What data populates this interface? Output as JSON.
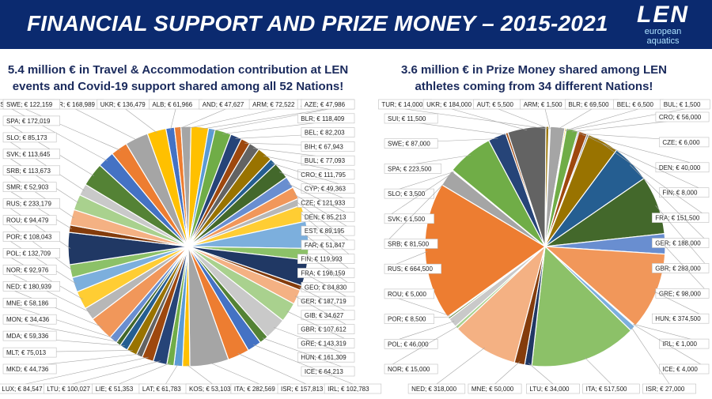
{
  "header": {
    "title": "FINANCIAL SUPPORT AND PRIZE MONEY – 2015-2021",
    "logo_mark": "LEN",
    "logo_line1": "european",
    "logo_line2": "aquatics"
  },
  "left_subtitle_1": "5.4 million € in Travel & Accommodation contribution at LEN",
  "left_subtitle_2": "events and Covid-19 support shared among all 52 Nations!",
  "right_subtitle_1": "3.6 million € in Prize Money shared among LEN",
  "right_subtitle_2": "athletes coming from 34 different Nations!",
  "chart_data": [
    {
      "type": "pie",
      "title": "5.4 million € in Travel & Accommodation contribution at LEN events and Covid-19 support shared among all 52 Nations!",
      "categories": [
        "ALB",
        "AND",
        "ARM",
        "AUT",
        "AZE",
        "BLR",
        "BEL",
        "BIH",
        "BUL",
        "CRO",
        "CYP",
        "CZE",
        "DEN",
        "EST",
        "FAR",
        "FIN",
        "FRA",
        "GEO",
        "GER",
        "GIB",
        "GBR",
        "GRE",
        "HUN",
        "ICE",
        "IRL",
        "ISR",
        "ITA",
        "KOS",
        "LAT",
        "LIE",
        "LTU",
        "LUX",
        "MKD",
        "MLT",
        "MDA",
        "MON",
        "MNE",
        "NED",
        "NOR",
        "POL",
        "POR",
        "ROU",
        "RUS",
        "SMR",
        "SRB",
        "SVK",
        "SLO",
        "SPA",
        "SWE",
        "SUI",
        "TUR",
        "UKR"
      ],
      "values": [
        61966,
        47627,
        72522,
        126229,
        47986,
        118409,
        82203,
        67943,
        77093,
        111795,
        49363,
        121933,
        85213,
        89195,
        51847,
        119993,
        196159,
        84830,
        187719,
        34627,
        107612,
        143319,
        161309,
        64213,
        102783,
        157813,
        282569,
        53103,
        61783,
        51353,
        100027,
        84547,
        44736,
        75013,
        59336,
        34436,
        58186,
        180939,
        92976,
        132709,
        108043,
        94479,
        233179,
        52903,
        113673,
        113645,
        85173,
        172019,
        122159,
        122159,
        168989,
        136479
      ],
      "labels": [
        "ALB; € 61,966",
        "AND; € 47,627",
        "ARM; € 72,522",
        "AUT; € 126,229",
        "AZE; € 47,986",
        "BLR; € 118,409",
        "BEL; € 82,203",
        "BIH; € 67,943",
        "BUL; € 77,093",
        "CRO; € 111,795",
        "CYP; € 49,363",
        "CZE; € 121,933",
        "DEN; € 85,213",
        "EST; € 89,195",
        "FAR; € 51,847",
        "FIN; € 119,993",
        "FRA; € 196,159",
        "GEO; € 84,830",
        "GER; € 187,719",
        "GIB; € 34,627",
        "GBR; € 107,612",
        "GRE; € 143,319",
        "HUN; € 161,309",
        "ICE; € 64,213",
        "IRL; € 102,783",
        "ISR; € 157,813",
        "ITA; € 282,569",
        "KOS; € 53,103",
        "LAT; € 61,783",
        "LIE; € 51,353",
        "LTU; € 100,027",
        "LUX; € 84,547",
        "MKD; € 44,736",
        "MLT; € 75,013",
        "MDA; € 59,336",
        "MON; € 34,436",
        "MNE; € 58,186",
        "NED; € 180,939",
        "NOR; € 92,976",
        "POL; € 132,709",
        "POR; € 108,043",
        "ROU; € 94,479",
        "RUS; € 233,179",
        "SMR; € 52,903",
        "SRB; € 113,673",
        "SVK; € 113,645",
        "SLO; € 85,173",
        "SPA; € 172,019",
        "SWE; € 122,159",
        "SUI; € 122,159",
        "TUR; € 168,989",
        "UKR; € 136,479"
      ]
    },
    {
      "type": "pie",
      "title": "3.6 million € in Prize Money shared among LEN athletes coming from 34 different Nations!",
      "categories": [
        "AUT",
        "ARM",
        "BLR",
        "BEL",
        "BUL",
        "CRO",
        "CZE",
        "DEN",
        "FIN",
        "FRA",
        "GER",
        "GBR",
        "GRE",
        "HUN",
        "IRL",
        "ICE",
        "ISR",
        "ITA",
        "LTU",
        "MNE",
        "NED",
        "NOR",
        "POL",
        "POR",
        "ROU",
        "RUS",
        "SRB",
        "SVK",
        "SLO",
        "SPA",
        "SWE",
        "SUI",
        "UKR",
        "TUR"
      ],
      "values": [
        5500,
        1500,
        69500,
        6500,
        1500,
        56000,
        6000,
        40000,
        8000,
        151500,
        188000,
        283000,
        98000,
        374500,
        1000,
        4000,
        27000,
        517500,
        34000,
        50000,
        318000,
        15000,
        46000,
        8500,
        5000,
        664500,
        81500,
        1500,
        3500,
        223500,
        87000,
        11500,
        184000,
        14000
      ],
      "labels": [
        "AUT; € 5,500",
        "ARM; € 1,500",
        "BLR; € 69,500",
        "BEL; € 6,500",
        "BUL; € 1,500",
        "CRO; € 56,000",
        "CZE; € 6,000",
        "DEN; € 40,000",
        "FIN; € 8,000",
        "FRA; € 151,500",
        "GER; € 188,000",
        "GBR; € 283,000",
        "GRE; € 98,000",
        "HUN; € 374,500",
        "IRL; € 1,000",
        "ICE; € 4,000",
        "ISR; € 27,000",
        "ITA; € 517,500",
        "LTU; € 34,000",
        "MNE; € 50,000",
        "NED; € 318,000",
        "NOR; € 15,000",
        "POL; € 46,000",
        "POR; € 8,500",
        "ROU; € 5,000",
        "RUS; € 664,500",
        "SRB; € 81,500",
        "SVK; € 1,500",
        "SLO; € 3,500",
        "SPA; € 223,500",
        "SWE; € 87,000",
        "SUI; € 11,500",
        "UKR; € 184,000",
        "TUR; € 14,000"
      ]
    }
  ],
  "palette": [
    "#4472c4",
    "#ed7d31",
    "#a5a5a5",
    "#ffc000",
    "#5b9bd5",
    "#70ad47",
    "#264478",
    "#9e480e",
    "#636363",
    "#997300",
    "#255e91",
    "#43682b",
    "#698ed0",
    "#f1975a",
    "#b7b7b7",
    "#ffcd33",
    "#7cafdd",
    "#8cc168",
    "#203864",
    "#843c0c",
    "#f4b183",
    "#a9d18e",
    "#c9c9c9",
    "#548235"
  ],
  "left_label_texts": {
    "top": [
      "SUI; € 122,159",
      "TUR; € 168,989",
      "UKR; € 136,479",
      "ALB; € 61,966",
      "AND; € 47,627",
      "ARM; € 72,522",
      "AUT; € 126,229"
    ],
    "right": [
      "AZE; € 47,986",
      "BLR; € 118,409",
      "BEL; € 82,203",
      "BIH; € 67,943",
      "BUL; € 77,093",
      "CRO; € 111,795",
      "CYP; € 49,363",
      "CZE; € 121,933",
      "DEN; € 85,213",
      "EST; € 89,195",
      "FAR; € 51,847",
      "FIN; € 119,993",
      "FRA; € 196,159",
      "GEO; € 84,830",
      "GER; € 187,719",
      "GIB; € 34,627",
      "GBR; € 107,612",
      "GRE; € 143,319",
      "HUN; € 161,309",
      "ICE; € 64,213"
    ],
    "left": [
      "SWE; € 122,159",
      "SPA; € 172,019",
      "SLO; € 85,173",
      "SVK; € 113,645",
      "SRB; € 113,673",
      "SMR; € 52,903",
      "RUS; € 233,179",
      "ROU; € 94,479",
      "POR; € 108,043",
      "POL; € 132,709",
      "NOR; € 92,976",
      "NED; € 180,939",
      "MNE; € 58,186",
      "MON; € 34,436",
      "MDA; € 59,336",
      "MLT; € 75,013",
      "MKD; € 44,736"
    ],
    "bottom": [
      "LUX; € 84,547",
      "LTU; € 100,027",
      "LIE; € 51,353",
      "LAT; € 61,783",
      "KOS; € 53,103",
      "ITA; € 282,569",
      "ISR; € 157,813",
      "IRL; € 102,783"
    ]
  },
  "right_label_texts": {
    "top": [
      "TUR; € 14,000",
      "UKR; € 184,000",
      "AUT; € 5,500",
      "ARM; € 1,500",
      "BLR; € 69,500",
      "BEL; € 6,500",
      "BUL; € 1,500"
    ],
    "right": [
      "CRO; € 56,000",
      "CZE; € 6,000",
      "DEN; € 40,000",
      "FIN; € 8,000",
      "FRA; € 151,500",
      "GER; € 188,000",
      "GBR; € 283,000",
      "GRE; € 98,000",
      "HUN; € 374,500",
      "IRL; € 1,000",
      "ICE; € 4,000"
    ],
    "left": [
      "SUI; € 11,500",
      "SWE; € 87,000",
      "SPA; € 223,500",
      "SLO; € 3,500",
      "SVK; € 1,500",
      "SRB; € 81,500",
      "RUS; € 664,500",
      "ROU; € 5,000",
      "POR; € 8,500",
      "POL; € 46,000",
      "NOR; € 15,000"
    ],
    "bottom": [
      "NED; € 318,000",
      "MNE; € 50,000",
      "LTU; € 34,000",
      "ITA; € 517,500",
      "ISR; € 27,000"
    ]
  }
}
